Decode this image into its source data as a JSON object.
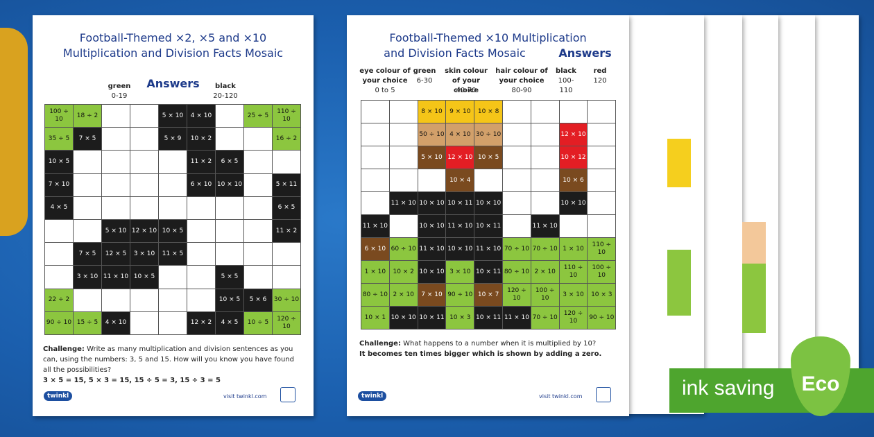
{
  "left_sheet": {
    "title_lines": [
      "Football-Themed ×2, ×5 and ×10",
      "Multiplication and Division Facts Mosaic"
    ],
    "answers": "Answers",
    "key": [
      {
        "label": "green",
        "range": "0-19"
      },
      {
        "label": "black",
        "range": "20-120"
      }
    ],
    "colors": [
      "ggwwkkwgg",
      "gkwwkkwwg",
      "kwwwwkkww",
      "kwwwwkkwk",
      "kwwwwwwwk",
      "wwkkkwwwk",
      "wkkkkwwww",
      "wkkkwwkww",
      "gwwwwwkkg",
      "ggkwwkkgg"
    ],
    "cells": [
      [
        "100 ÷ 10",
        "18 ÷ 2",
        null,
        null,
        "5 × 10",
        "4 × 10",
        null,
        "25 ÷ 5",
        "110 ÷ 10"
      ],
      [
        "35 ÷ 5",
        "7 × 5",
        null,
        null,
        "5 × 9",
        "10 × 2",
        null,
        null,
        "16 ÷ 2"
      ],
      [
        "10 × 5",
        null,
        null,
        null,
        null,
        "11 × 2",
        "6 × 5",
        null,
        null
      ],
      [
        "7 × 10",
        null,
        null,
        null,
        null,
        "6 × 10",
        "10 × 10",
        null,
        "5 × 11"
      ],
      [
        "4 × 5",
        null,
        null,
        null,
        null,
        null,
        null,
        null,
        "6 × 5"
      ],
      [
        null,
        null,
        "5 × 10",
        "12 × 10",
        "10 × 5",
        null,
        null,
        null,
        "11 × 2"
      ],
      [
        null,
        "7 × 5",
        "12 × 5",
        "3 × 10",
        "11 × 5",
        null,
        null,
        null,
        null
      ],
      [
        null,
        "3 × 10",
        "11 × 10",
        "10 × 5",
        null,
        null,
        "5 × 5",
        null,
        null
      ],
      [
        "22 ÷ 2",
        null,
        null,
        null,
        null,
        null,
        "10 × 5",
        "5 × 6",
        "30 ÷ 10"
      ],
      [
        "90 ÷ 10",
        "15 ÷ 5",
        "4 × 10",
        null,
        null,
        "12 × 2",
        "4 × 5",
        "10 ÷ 5",
        "120 ÷ 10"
      ]
    ],
    "challenge_label": "Challenge:",
    "challenge_text": "Write as many multiplication and division sentences as you can, using the numbers: 3, 5 and 15. How will you know you have found all the possibilities?",
    "answer": "3 × 5 = 15, 5 × 3 = 15, 15 ÷ 5 = 3, 15 ÷ 3 = 5",
    "logo": "twinkl",
    "url": "visit twinkl.com"
  },
  "right_sheet": {
    "title_lines": [
      "Football-Themed ×10 Multiplication",
      "and Division Facts Mosaic"
    ],
    "answers": "Answers",
    "key": [
      {
        "label": "eye colour of your choice",
        "range": "0 to 5"
      },
      {
        "label": "green",
        "range": "6-30"
      },
      {
        "label": "skin colour of your choice",
        "range": "40-70"
      },
      {
        "label": "hair colour of your choice",
        "range": "80-90"
      },
      {
        "label": "black",
        "range": "100-110"
      },
      {
        "label": "red",
        "range": "120"
      }
    ],
    "colors": [
      "wwyyywwww",
      "wwtttwwrw",
      "wwbrbwwrw",
      "wwwbwwwbw",
      "wkkkkwwkw",
      "kwkkkwkww",
      "bgkkkgggg",
      "ggkgkgggg",
      "ggbgbgggg",
      "gkkgkkggg"
    ],
    "cells": [
      [
        null,
        null,
        "8 × 10",
        "9 × 10",
        "10 × 8",
        null,
        null,
        null,
        null
      ],
      [
        null,
        null,
        "50 ÷ 10",
        "4 × 10",
        "30 ÷ 10",
        null,
        null,
        "12 × 10",
        null
      ],
      [
        null,
        null,
        "5 × 10",
        "12 × 10",
        "10 × 5",
        null,
        null,
        "10 × 12",
        null
      ],
      [
        null,
        null,
        null,
        "10 × 4",
        null,
        null,
        null,
        "10 × 6",
        null
      ],
      [
        null,
        "11 × 10",
        "10 × 10",
        "10 × 11",
        "10 × 10",
        null,
        null,
        "10 × 10",
        null
      ],
      [
        "11 × 10",
        null,
        "10 × 10",
        "11 × 10",
        "10 × 11",
        null,
        "11 × 10",
        null,
        null
      ],
      [
        "6 × 10",
        "60 ÷ 10",
        "11 × 10",
        "10 × 10",
        "11 × 10",
        "70 ÷ 10",
        "70 ÷ 10",
        "1 × 10",
        "110 ÷ 10"
      ],
      [
        "1 × 10",
        "10 × 2",
        "10 × 10",
        "3 × 10",
        "10 × 11",
        "80 ÷ 10",
        "2 × 10",
        "110 ÷ 10",
        "100 ÷ 10"
      ],
      [
        "80 ÷ 10",
        "2 × 10",
        "7 × 10",
        "90 ÷ 10",
        "10 × 7",
        "120 ÷ 10",
        "100 ÷ 10",
        "3 × 10",
        "10 × 3"
      ],
      [
        "10 × 1",
        "10 × 10",
        "10 × 11",
        "10 × 3",
        "10 × 11",
        "11 × 10",
        "70 ÷ 10",
        "120 ÷ 10",
        "90 ÷ 10"
      ]
    ],
    "challenge_label": "Challenge:",
    "challenge_text": "What happens to a number when it is multiplied by 10?",
    "answer": "It becomes ten times bigger which is shown by adding a zero.",
    "logo": "twinkl",
    "url": "visit twinkl.com"
  },
  "badge": {
    "text": "ink saving",
    "eco": "Eco"
  }
}
